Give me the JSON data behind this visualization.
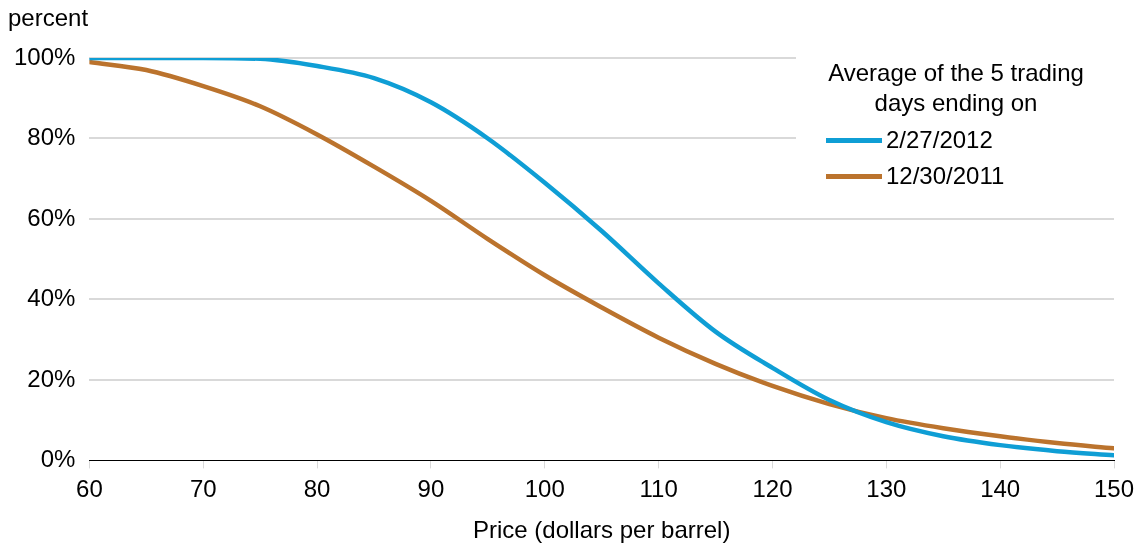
{
  "chart_data": {
    "type": "line",
    "xlabel": "Price (dollars per barrel)",
    "ylabel": "percent",
    "legend_title": "Average of the 5 trading days ending on",
    "legend": "top right",
    "grid": "y",
    "marker": "none",
    "line_style": "solid",
    "xlim": [
      60,
      150
    ],
    "xticks": [
      60,
      70,
      80,
      90,
      100,
      110,
      120,
      130,
      140,
      150
    ],
    "ylim": [
      0,
      100
    ],
    "yticks": [
      {
        "value": 0,
        "label": "0%"
      },
      {
        "value": 20,
        "label": "20%"
      },
      {
        "value": 40,
        "label": "40%"
      },
      {
        "value": 60,
        "label": "60%"
      },
      {
        "value": 80,
        "label": "80%"
      },
      {
        "value": 100,
        "label": "100%"
      }
    ],
    "x": [
      60,
      65,
      70,
      75,
      80,
      85,
      90,
      95,
      100,
      105,
      110,
      115,
      120,
      125,
      130,
      135,
      140,
      145,
      150
    ],
    "series": [
      {
        "name": "2/27/2012",
        "color": "#0f9ed5",
        "values": [
          100,
          100,
          100,
          99.8,
          98,
          95,
          89,
          80,
          69,
          57,
          44,
          32,
          23,
          15,
          9.5,
          6,
          3.8,
          2.3,
          1.3
        ]
      },
      {
        "name": "12/30/2011",
        "color": "#bb732d",
        "values": [
          99,
          97,
          93,
          88,
          81,
          73,
          64.5,
          55,
          46,
          38,
          30.5,
          24,
          18.5,
          14,
          10.5,
          8,
          6,
          4.3,
          3
        ]
      }
    ]
  }
}
